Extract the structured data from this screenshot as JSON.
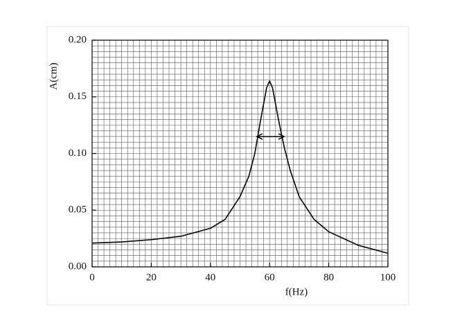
{
  "chart_data": {
    "type": "line",
    "xlabel": "f(Hz)",
    "ylabel": "A(cm)",
    "x": [
      0,
      10,
      20,
      30,
      40,
      45,
      50,
      53,
      55,
      57,
      59,
      60,
      61,
      63,
      65,
      67,
      70,
      75,
      80,
      90,
      100
    ],
    "series": [
      {
        "color": "#000000",
        "values": [
          0.021,
          0.022,
          0.024,
          0.027,
          0.034,
          0.042,
          0.062,
          0.08,
          0.1,
          0.13,
          0.158,
          0.164,
          0.158,
          0.13,
          0.105,
          0.085,
          0.062,
          0.042,
          0.031,
          0.019,
          0.012
        ]
      }
    ],
    "xlim": [
      0,
      100
    ],
    "xticks": [
      0,
      20,
      40,
      60,
      80,
      100
    ],
    "ylim": [
      0,
      0.2
    ],
    "yticks": [
      {
        "value": 0,
        "label": "0.00"
      },
      0.05,
      {
        "value": 0.1,
        "label": "0.10"
      },
      0.15,
      {
        "value": 0.2,
        "label": "0.20"
      }
    ],
    "grid": true,
    "minor_grid": {
      "x": 2,
      "y": 0.005
    },
    "width_arrow": {
      "x": [
        55.7,
        64.9
      ],
      "y": 0.115
    }
  }
}
